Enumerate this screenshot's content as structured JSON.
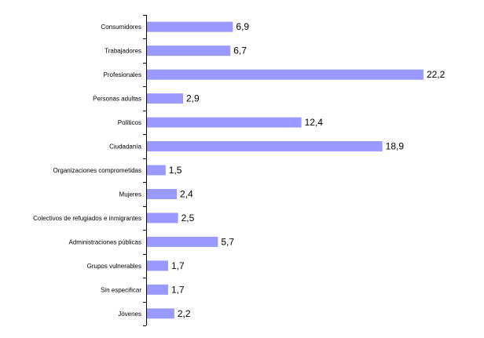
{
  "chart_data": {
    "type": "bar",
    "orientation": "horizontal",
    "categories": [
      "Consumidores",
      "Trabajadores",
      "Profesionales",
      "Personas adultas",
      "Políticos",
      "Ciudadanía",
      "Organizaciones comprometidas",
      "Mujeres",
      "Colectivos de refugiados e inmigrantes",
      "Administraciones públicas",
      "Grupos vulnerables",
      "Sin especificar",
      "Jóvenes"
    ],
    "values": [
      6.9,
      6.7,
      22.2,
      2.9,
      12.4,
      18.9,
      1.5,
      2.4,
      2.5,
      5.7,
      1.7,
      1.7,
      2.2
    ],
    "value_labels": [
      "6,9",
      "6,7",
      "22,2",
      "2,9",
      "12,4",
      "18,9",
      "1,5",
      "2,4",
      "2,5",
      "5,7",
      "1,7",
      "1,7",
      "2,2"
    ],
    "xlim": [
      0,
      22.2
    ],
    "grid": false,
    "legend": "none",
    "colors": {
      "bar": "#9999ff",
      "axis": "#000000"
    }
  }
}
